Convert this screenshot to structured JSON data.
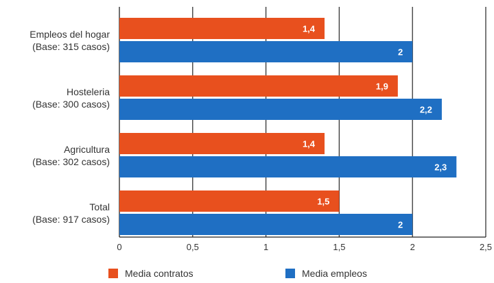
{
  "chart_data": {
    "type": "bar",
    "orientation": "horizontal",
    "categories": [
      {
        "name": "Empleos del hogar",
        "base": "(Base: 315 casos)"
      },
      {
        "name": "Hosteleria",
        "base": "(Base: 300 casos)"
      },
      {
        "name": "Agricultura",
        "base": "(Base: 302 casos)"
      },
      {
        "name": "Total",
        "base": "(Base: 917 casos)"
      }
    ],
    "series": [
      {
        "name": "Media contratos",
        "color": "#e8501e",
        "values": [
          1.4,
          1.9,
          1.4,
          1.5
        ],
        "labels": [
          "1,4",
          "1,9",
          "1,4",
          "1,5"
        ]
      },
      {
        "name": "Media empleos",
        "color": "#1f6fc3",
        "values": [
          2,
          2.2,
          2.3,
          2
        ],
        "labels": [
          "2",
          "2,2",
          "2,3",
          "2"
        ]
      }
    ],
    "xlim": [
      0,
      2.5
    ],
    "ticks": [
      0,
      0.5,
      1,
      1.5,
      2,
      2.5
    ],
    "tick_labels": [
      "0",
      "0,5",
      "1",
      "1,5",
      "2",
      "2,5"
    ],
    "grid": true,
    "legend_position": "bottom"
  }
}
